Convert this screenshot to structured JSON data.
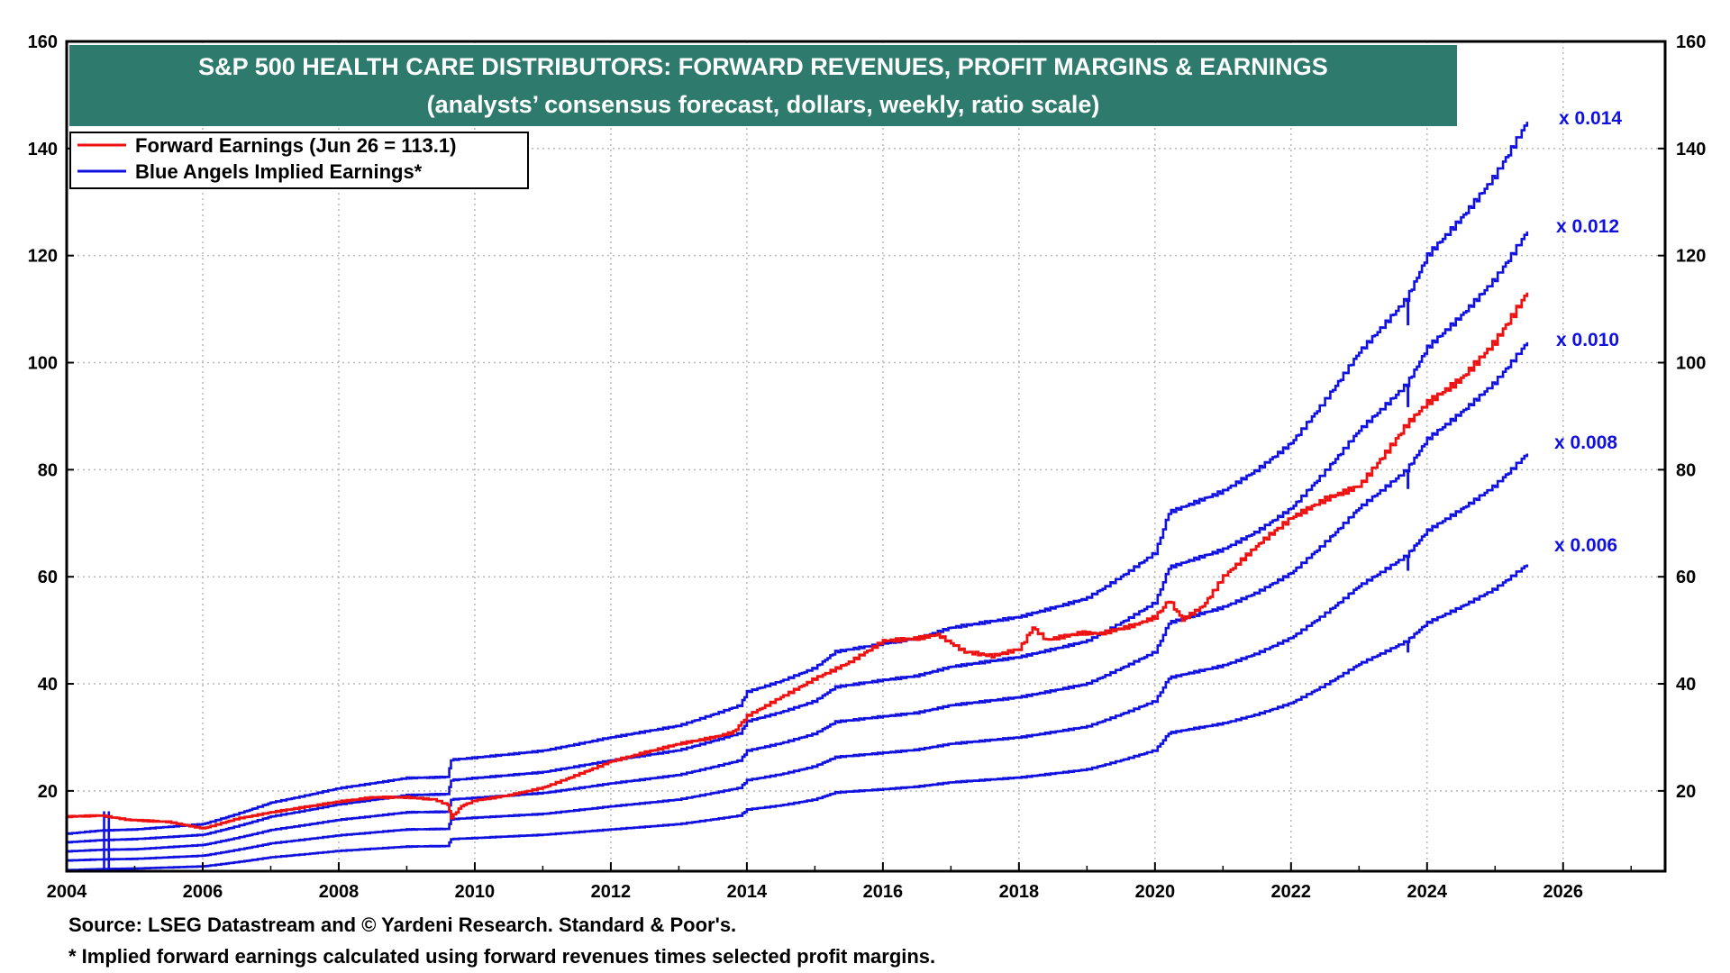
{
  "colors": {
    "title_bg": "#2e7b6e",
    "title_fg": "#ffffff",
    "earnings": "#ee1111",
    "implied": "#1010e0",
    "grid": "#b8b8b8",
    "axis": "#000000"
  },
  "chart_data": {
    "type": "line",
    "title": "S&P 500 HEALTH CARE DISTRIBUTORS: FORWARD REVENUES, PROFIT MARGINS & EARNINGS",
    "subtitle": "(analysts’ consensus forecast, dollars, weekly, ratio scale)",
    "xlabel": "",
    "ylabel": "",
    "xlim": [
      2004,
      2027.5
    ],
    "ylim": [
      5,
      160
    ],
    "x_ticks": [
      "2004",
      "2006",
      "2008",
      "2010",
      "2012",
      "2014",
      "2016",
      "2018",
      "2020",
      "2022",
      "2024",
      "2026"
    ],
    "y_ticks": [
      "20",
      "40",
      "60",
      "80",
      "100",
      "120",
      "140",
      "160"
    ],
    "grid": true,
    "legend": [
      {
        "label": "Forward Earnings (Jun 26 = 113.1)",
        "color": "#ee1111"
      },
      {
        "label": "Blue Angels Implied Earnings*",
        "color": "#1010e0"
      }
    ],
    "legend_position": "top-left",
    "forward_earnings": {
      "name": "Forward Earnings",
      "points": [
        [
          2004.0,
          15.2
        ],
        [
          2004.5,
          15.4
        ],
        [
          2004.9,
          14.6
        ],
        [
          2005.5,
          14.2
        ],
        [
          2006.0,
          13.0
        ],
        [
          2006.5,
          14.8
        ],
        [
          2007.0,
          16.0
        ],
        [
          2007.5,
          17.0
        ],
        [
          2008.0,
          18.0
        ],
        [
          2008.5,
          18.8
        ],
        [
          2009.0,
          18.8
        ],
        [
          2009.4,
          18.4
        ],
        [
          2009.6,
          17.4
        ],
        [
          2009.65,
          15.0
        ],
        [
          2009.8,
          17.2
        ],
        [
          2010.0,
          18.2
        ],
        [
          2010.5,
          19.2
        ],
        [
          2011.0,
          20.6
        ],
        [
          2011.5,
          23.0
        ],
        [
          2012.0,
          25.5
        ],
        [
          2012.5,
          27.2
        ],
        [
          2013.0,
          28.8
        ],
        [
          2013.5,
          30.0
        ],
        [
          2013.8,
          31.0
        ],
        [
          2014.0,
          34.0
        ],
        [
          2014.5,
          37.5
        ],
        [
          2015.0,
          41.0
        ],
        [
          2015.5,
          44.0
        ],
        [
          2016.0,
          48.0
        ],
        [
          2016.5,
          48.5
        ],
        [
          2016.8,
          49.2
        ],
        [
          2017.2,
          46.0
        ],
        [
          2017.6,
          45.2
        ],
        [
          2018.0,
          46.5
        ],
        [
          2018.2,
          50.5
        ],
        [
          2018.4,
          48.2
        ],
        [
          2018.9,
          49.5
        ],
        [
          2019.2,
          49.4
        ],
        [
          2019.7,
          51.0
        ],
        [
          2020.0,
          52.5
        ],
        [
          2020.2,
          55.6
        ],
        [
          2020.4,
          52.0
        ],
        [
          2020.7,
          54.5
        ],
        [
          2021.0,
          60.0
        ],
        [
          2021.3,
          63.5
        ],
        [
          2021.6,
          67.0
        ],
        [
          2022.0,
          71.0
        ],
        [
          2022.5,
          74.5
        ],
        [
          2023.0,
          77.0
        ],
        [
          2023.5,
          85.0
        ],
        [
          2023.7,
          88.5
        ],
        [
          2024.0,
          92.5
        ],
        [
          2024.5,
          97.0
        ],
        [
          2025.0,
          104.0
        ],
        [
          2025.47,
          113.1
        ]
      ]
    },
    "implied_series": [
      {
        "name": "Blue Angels Implied Earnings x 0.014",
        "multiplier": "x 0.014",
        "points": [
          [
            2004.0,
            12.0
          ],
          [
            2004.5,
            12.6
          ],
          [
            2005.0,
            12.8
          ],
          [
            2006.0,
            13.8
          ],
          [
            2007.0,
            17.8
          ],
          [
            2008.0,
            20.5
          ],
          [
            2009.0,
            22.4
          ],
          [
            2009.6,
            22.6
          ],
          [
            2009.65,
            25.8
          ],
          [
            2010.0,
            26.2
          ],
          [
            2011.0,
            27.5
          ],
          [
            2012.0,
            30.0
          ],
          [
            2013.0,
            32.2
          ],
          [
            2013.9,
            36.0
          ],
          [
            2014.0,
            38.5
          ],
          [
            2014.5,
            40.5
          ],
          [
            2015.0,
            43.0
          ],
          [
            2015.3,
            46.0
          ],
          [
            2016.0,
            47.5
          ],
          [
            2016.5,
            48.5
          ],
          [
            2017.0,
            50.5
          ],
          [
            2018.0,
            52.5
          ],
          [
            2019.0,
            56.0
          ],
          [
            2019.5,
            60.0
          ],
          [
            2020.0,
            64.5
          ],
          [
            2020.2,
            72.0
          ],
          [
            2020.5,
            73.5
          ],
          [
            2021.0,
            76.0
          ],
          [
            2021.5,
            80.0
          ],
          [
            2022.0,
            85.0
          ],
          [
            2022.5,
            93.0
          ],
          [
            2023.0,
            102.0
          ],
          [
            2023.7,
            112.0
          ],
          [
            2024.0,
            120.0
          ],
          [
            2024.5,
            127.0
          ],
          [
            2025.0,
            135.0
          ],
          [
            2025.47,
            145.0
          ]
        ]
      },
      {
        "name": "Blue Angels Implied Earnings x 0.012",
        "multiplier": "x 0.012",
        "points": [
          [
            2004.0,
            10.4
          ],
          [
            2004.5,
            10.8
          ],
          [
            2005.0,
            11.0
          ],
          [
            2006.0,
            11.8
          ],
          [
            2007.0,
            15.2
          ],
          [
            2008.0,
            17.5
          ],
          [
            2009.0,
            19.2
          ],
          [
            2009.6,
            19.4
          ],
          [
            2009.65,
            22.0
          ],
          [
            2010.0,
            22.4
          ],
          [
            2011.0,
            23.5
          ],
          [
            2012.0,
            25.7
          ],
          [
            2013.0,
            27.6
          ],
          [
            2013.9,
            30.8
          ],
          [
            2014.0,
            33.0
          ],
          [
            2014.5,
            34.7
          ],
          [
            2015.0,
            36.8
          ],
          [
            2015.3,
            39.4
          ],
          [
            2016.0,
            40.7
          ],
          [
            2016.5,
            41.5
          ],
          [
            2017.0,
            43.2
          ],
          [
            2018.0,
            45.0
          ],
          [
            2019.0,
            48.0
          ],
          [
            2019.5,
            51.4
          ],
          [
            2020.0,
            55.2
          ],
          [
            2020.2,
            61.7
          ],
          [
            2020.5,
            63.0
          ],
          [
            2021.0,
            65.1
          ],
          [
            2021.5,
            68.5
          ],
          [
            2022.0,
            72.8
          ],
          [
            2022.5,
            79.7
          ],
          [
            2023.0,
            87.4
          ],
          [
            2023.7,
            96.0
          ],
          [
            2024.0,
            102.8
          ],
          [
            2024.5,
            108.8
          ],
          [
            2025.0,
            115.7
          ],
          [
            2025.47,
            124.5
          ]
        ]
      },
      {
        "name": "Blue Angels Implied Earnings x 0.010",
        "multiplier": "x 0.010",
        "points": [
          [
            2004.0,
            8.7
          ],
          [
            2004.5,
            9.0
          ],
          [
            2005.0,
            9.1
          ],
          [
            2006.0,
            9.9
          ],
          [
            2007.0,
            12.7
          ],
          [
            2008.0,
            14.6
          ],
          [
            2009.0,
            16.0
          ],
          [
            2009.6,
            16.1
          ],
          [
            2009.65,
            18.4
          ],
          [
            2010.0,
            18.7
          ],
          [
            2011.0,
            19.6
          ],
          [
            2012.0,
            21.4
          ],
          [
            2013.0,
            23.0
          ],
          [
            2013.9,
            25.7
          ],
          [
            2014.0,
            27.5
          ],
          [
            2014.5,
            28.9
          ],
          [
            2015.0,
            30.7
          ],
          [
            2015.3,
            32.9
          ],
          [
            2016.0,
            33.9
          ],
          [
            2016.5,
            34.6
          ],
          [
            2017.0,
            36.0
          ],
          [
            2018.0,
            37.5
          ],
          [
            2019.0,
            40.0
          ],
          [
            2019.5,
            42.9
          ],
          [
            2020.0,
            46.0
          ],
          [
            2020.2,
            51.4
          ],
          [
            2020.5,
            52.5
          ],
          [
            2021.0,
            54.3
          ],
          [
            2021.5,
            57.1
          ],
          [
            2022.0,
            60.7
          ],
          [
            2022.5,
            66.4
          ],
          [
            2023.0,
            72.9
          ],
          [
            2023.7,
            80.0
          ],
          [
            2024.0,
            85.7
          ],
          [
            2024.5,
            90.7
          ],
          [
            2025.0,
            96.4
          ],
          [
            2025.47,
            103.8
          ]
        ]
      },
      {
        "name": "Blue Angels Implied Earnings x 0.008",
        "multiplier": "x 0.008",
        "points": [
          [
            2004.0,
            7.0
          ],
          [
            2004.5,
            7.2
          ],
          [
            2005.0,
            7.3
          ],
          [
            2006.0,
            7.9
          ],
          [
            2007.0,
            10.2
          ],
          [
            2008.0,
            11.7
          ],
          [
            2009.0,
            12.8
          ],
          [
            2009.6,
            12.9
          ],
          [
            2009.65,
            14.7
          ],
          [
            2010.0,
            15.0
          ],
          [
            2011.0,
            15.7
          ],
          [
            2012.0,
            17.1
          ],
          [
            2013.0,
            18.4
          ],
          [
            2013.9,
            20.6
          ],
          [
            2014.0,
            22.0
          ],
          [
            2014.5,
            23.1
          ],
          [
            2015.0,
            24.6
          ],
          [
            2015.3,
            26.3
          ],
          [
            2016.0,
            27.1
          ],
          [
            2016.5,
            27.7
          ],
          [
            2017.0,
            28.8
          ],
          [
            2018.0,
            30.0
          ],
          [
            2019.0,
            32.0
          ],
          [
            2019.5,
            34.3
          ],
          [
            2020.0,
            36.8
          ],
          [
            2020.2,
            41.1
          ],
          [
            2020.5,
            42.0
          ],
          [
            2021.0,
            43.4
          ],
          [
            2021.5,
            45.7
          ],
          [
            2022.0,
            48.6
          ],
          [
            2022.5,
            53.1
          ],
          [
            2023.0,
            58.3
          ],
          [
            2023.7,
            64.0
          ],
          [
            2024.0,
            68.6
          ],
          [
            2024.5,
            72.6
          ],
          [
            2025.0,
            77.1
          ],
          [
            2025.47,
            83.0
          ]
        ]
      },
      {
        "name": "Blue Angels Implied Earnings x 0.006",
        "multiplier": "x 0.006",
        "points": [
          [
            2004.0,
            5.2
          ],
          [
            2004.5,
            5.4
          ],
          [
            2005.0,
            5.5
          ],
          [
            2006.0,
            5.9
          ],
          [
            2007.0,
            7.6
          ],
          [
            2008.0,
            8.8
          ],
          [
            2009.0,
            9.6
          ],
          [
            2009.6,
            9.7
          ],
          [
            2009.65,
            11.0
          ],
          [
            2010.0,
            11.2
          ],
          [
            2011.0,
            11.8
          ],
          [
            2012.0,
            12.8
          ],
          [
            2013.0,
            13.8
          ],
          [
            2013.9,
            15.4
          ],
          [
            2014.0,
            16.5
          ],
          [
            2014.5,
            17.3
          ],
          [
            2015.0,
            18.4
          ],
          [
            2015.3,
            19.7
          ],
          [
            2016.0,
            20.3
          ],
          [
            2016.5,
            20.8
          ],
          [
            2017.0,
            21.6
          ],
          [
            2018.0,
            22.5
          ],
          [
            2019.0,
            24.0
          ],
          [
            2019.5,
            25.7
          ],
          [
            2020.0,
            27.6
          ],
          [
            2020.2,
            30.8
          ],
          [
            2020.5,
            31.5
          ],
          [
            2021.0,
            32.6
          ],
          [
            2021.5,
            34.3
          ],
          [
            2022.0,
            36.4
          ],
          [
            2022.5,
            39.8
          ],
          [
            2023.0,
            43.7
          ],
          [
            2023.7,
            48.0
          ],
          [
            2024.0,
            51.4
          ],
          [
            2024.5,
            54.4
          ],
          [
            2025.0,
            57.8
          ],
          [
            2025.47,
            62.3
          ]
        ]
      }
    ]
  },
  "footer": {
    "source": "Source: LSEG Datastream and © Yardeni Research. Standard & Poor's.",
    "note": "* Implied forward earnings calculated using forward revenues times selected profit margins."
  }
}
